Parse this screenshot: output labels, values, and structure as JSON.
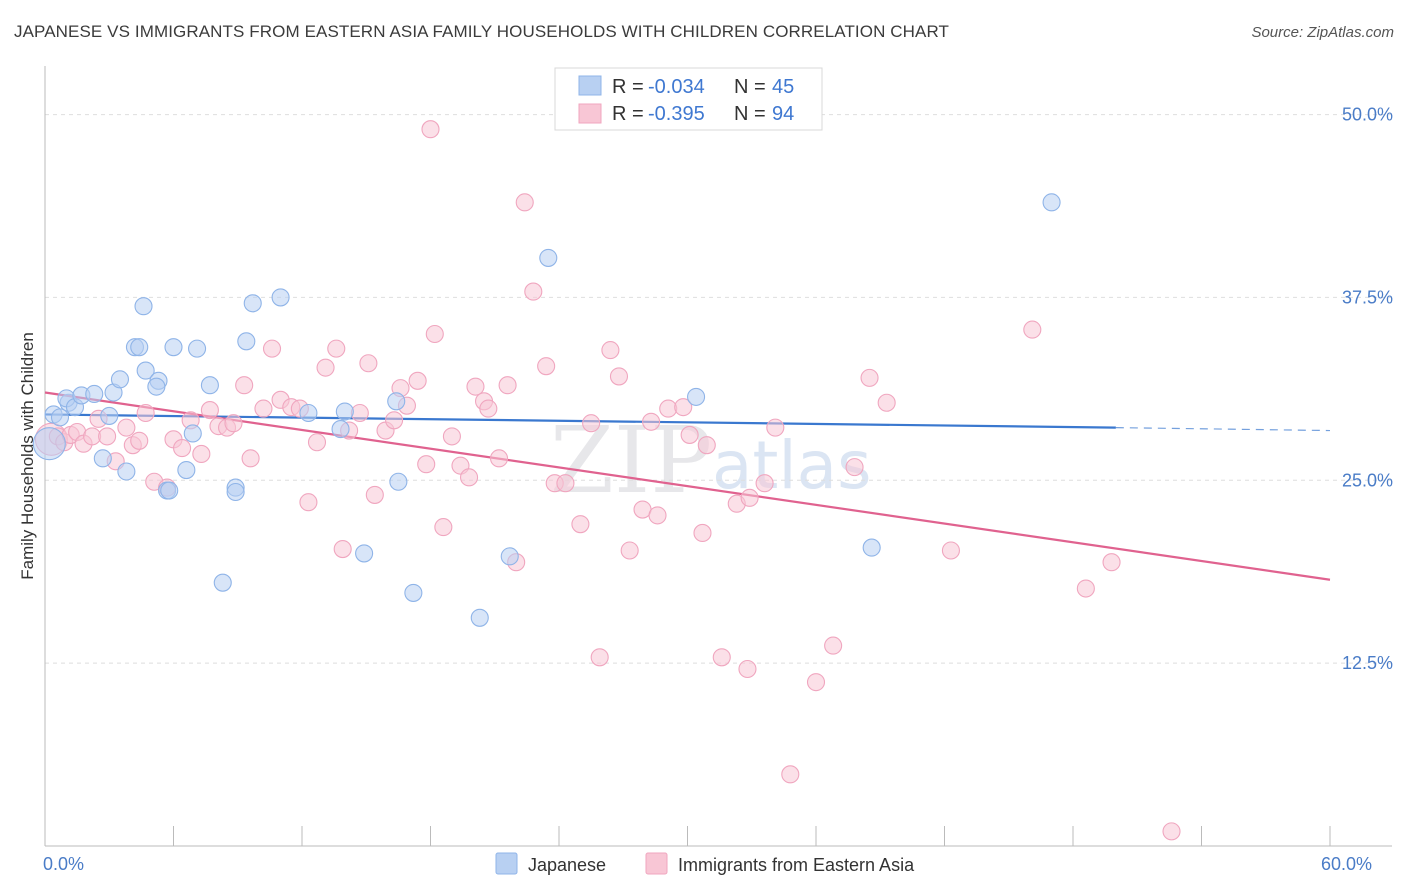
{
  "header": {
    "title": "JAPANESE VS IMMIGRANTS FROM EASTERN ASIA FAMILY HOUSEHOLDS WITH CHILDREN CORRELATION CHART",
    "source": "Source: ZipAtlas.com"
  },
  "watermark": {
    "zip": "ZIP",
    "atlas": "atlas"
  },
  "chart_data": {
    "type": "scatter",
    "ylabel": "Family Households with Children",
    "xlim": [
      0,
      60
    ],
    "ylim": [
      0,
      52.5
    ],
    "x_tick_labels": [
      {
        "value": 0,
        "label": "0.0%"
      },
      {
        "value": 60,
        "label": "60.0%"
      }
    ],
    "y_ticks": [
      {
        "value": 12.5,
        "label": "12.5%"
      },
      {
        "value": 25.0,
        "label": "25.0%"
      },
      {
        "value": 37.5,
        "label": "37.5%"
      },
      {
        "value": 50.0,
        "label": "50.0%"
      }
    ],
    "grid": true,
    "legend_placement": "top-center",
    "series": [
      {
        "name": "Japanese",
        "color": "#8fb4e8",
        "fill": "#b8d0f2",
        "line_color": "#3a78cf",
        "R": "-0.034",
        "N": "45",
        "trend": {
          "x": [
            0,
            50
          ],
          "y": [
            29.5,
            28.6
          ],
          "dashed_to": [
            60,
            28.4
          ]
        },
        "points": [
          [
            0.2,
            27.5
          ],
          [
            0.4,
            29.5
          ],
          [
            0.7,
            29.3
          ],
          [
            1.1,
            30.3
          ],
          [
            1.0,
            30.6
          ],
          [
            1.4,
            30.0
          ],
          [
            1.7,
            30.8
          ],
          [
            2.3,
            30.9
          ],
          [
            2.7,
            26.5
          ],
          [
            3.0,
            29.4
          ],
          [
            3.2,
            31.0
          ],
          [
            3.5,
            31.9
          ],
          [
            3.8,
            25.6
          ],
          [
            4.6,
            36.9
          ],
          [
            4.2,
            34.1
          ],
          [
            4.4,
            34.1
          ],
          [
            4.7,
            32.5
          ],
          [
            5.3,
            31.8
          ],
          [
            5.2,
            31.4
          ],
          [
            5.7,
            24.3
          ],
          [
            5.8,
            24.3
          ],
          [
            6.0,
            34.1
          ],
          [
            6.6,
            25.7
          ],
          [
            6.9,
            28.2
          ],
          [
            7.1,
            34.0
          ],
          [
            7.7,
            31.5
          ],
          [
            8.3,
            18.0
          ],
          [
            8.9,
            24.5
          ],
          [
            8.9,
            24.2
          ],
          [
            9.4,
            34.5
          ],
          [
            9.7,
            37.1
          ],
          [
            11.0,
            37.5
          ],
          [
            12.3,
            29.6
          ],
          [
            13.8,
            28.5
          ],
          [
            14.0,
            29.7
          ],
          [
            14.9,
            20.0
          ],
          [
            16.4,
            30.4
          ],
          [
            16.5,
            24.9
          ],
          [
            17.2,
            17.3
          ],
          [
            20.3,
            15.6
          ],
          [
            21.7,
            19.8
          ],
          [
            23.5,
            40.2
          ],
          [
            30.4,
            30.7
          ],
          [
            38.6,
            20.4
          ],
          [
            47.0,
            44.0
          ]
        ]
      },
      {
        "name": "Immigrants from Eastern Asia",
        "color": "#f0a6bf",
        "fill": "#f8c6d5",
        "line_color": "#e0628f",
        "R": "-0.395",
        "N": "94",
        "trend": {
          "x": [
            0,
            60
          ],
          "y": [
            31.0,
            18.2
          ]
        },
        "points": [
          [
            0.3,
            27.8
          ],
          [
            0.6,
            28.0
          ],
          [
            0.9,
            27.6
          ],
          [
            1.2,
            28.1
          ],
          [
            1.5,
            28.3
          ],
          [
            1.8,
            27.5
          ],
          [
            2.2,
            28.0
          ],
          [
            2.5,
            29.2
          ],
          [
            2.9,
            28.0
          ],
          [
            3.3,
            26.3
          ],
          [
            3.8,
            28.6
          ],
          [
            4.1,
            27.4
          ],
          [
            4.4,
            27.7
          ],
          [
            4.7,
            29.6
          ],
          [
            5.1,
            24.9
          ],
          [
            5.7,
            24.5
          ],
          [
            6.0,
            27.8
          ],
          [
            6.4,
            27.2
          ],
          [
            6.8,
            29.1
          ],
          [
            7.3,
            26.8
          ],
          [
            7.7,
            29.8
          ],
          [
            8.1,
            28.7
          ],
          [
            8.5,
            28.6
          ],
          [
            8.8,
            28.9
          ],
          [
            9.3,
            31.5
          ],
          [
            9.6,
            26.5
          ],
          [
            10.2,
            29.9
          ],
          [
            10.6,
            34.0
          ],
          [
            11.0,
            30.5
          ],
          [
            11.5,
            30.0
          ],
          [
            11.9,
            29.9
          ],
          [
            12.3,
            23.5
          ],
          [
            12.7,
            27.6
          ],
          [
            13.1,
            32.7
          ],
          [
            13.6,
            34.0
          ],
          [
            13.9,
            20.3
          ],
          [
            14.2,
            28.4
          ],
          [
            14.7,
            29.6
          ],
          [
            15.1,
            33.0
          ],
          [
            15.4,
            24.0
          ],
          [
            15.9,
            28.4
          ],
          [
            16.3,
            29.1
          ],
          [
            16.6,
            31.3
          ],
          [
            16.9,
            30.1
          ],
          [
            17.4,
            31.8
          ],
          [
            17.8,
            26.1
          ],
          [
            18.2,
            35.0
          ],
          [
            18.6,
            21.8
          ],
          [
            19.0,
            28.0
          ],
          [
            19.4,
            26.0
          ],
          [
            19.8,
            25.2
          ],
          [
            20.1,
            31.4
          ],
          [
            20.5,
            30.4
          ],
          [
            20.7,
            29.9
          ],
          [
            21.2,
            26.5
          ],
          [
            21.6,
            31.5
          ],
          [
            22.0,
            19.4
          ],
          [
            22.4,
            44.0
          ],
          [
            22.8,
            37.9
          ],
          [
            23.4,
            32.8
          ],
          [
            23.8,
            24.8
          ],
          [
            24.3,
            24.8
          ],
          [
            25.0,
            22.0
          ],
          [
            25.5,
            28.9
          ],
          [
            25.9,
            12.9
          ],
          [
            26.4,
            33.9
          ],
          [
            26.8,
            32.1
          ],
          [
            27.3,
            20.2
          ],
          [
            27.9,
            23.0
          ],
          [
            28.3,
            29.0
          ],
          [
            28.6,
            22.6
          ],
          [
            29.1,
            29.9
          ],
          [
            29.8,
            30.0
          ],
          [
            30.1,
            28.1
          ],
          [
            30.7,
            21.4
          ],
          [
            30.9,
            27.4
          ],
          [
            31.6,
            12.9
          ],
          [
            32.3,
            23.4
          ],
          [
            32.8,
            12.1
          ],
          [
            32.9,
            23.8
          ],
          [
            33.6,
            24.8
          ],
          [
            34.1,
            28.6
          ],
          [
            34.8,
            4.9
          ],
          [
            36.0,
            11.2
          ],
          [
            36.8,
            13.7
          ],
          [
            37.8,
            25.9
          ],
          [
            38.5,
            32.0
          ],
          [
            39.3,
            30.3
          ],
          [
            42.3,
            20.2
          ],
          [
            46.1,
            35.3
          ],
          [
            48.6,
            17.6
          ],
          [
            49.8,
            19.4
          ],
          [
            52.6,
            1.0
          ],
          [
            18.0,
            49.0
          ]
        ]
      }
    ]
  }
}
